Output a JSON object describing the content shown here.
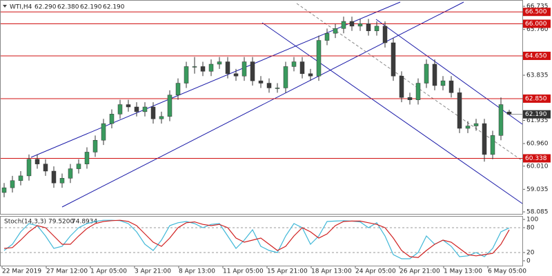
{
  "chart_data": {
    "type": "candlestick",
    "title": "WTI,H4",
    "header_values": [
      "62.290",
      "62.380",
      "62.190",
      "62.190"
    ],
    "open": [
      58.9,
      59.1,
      59.4,
      59.6,
      60.3,
      60.1,
      59.8,
      59.3,
      59.5,
      59.9,
      60.1,
      60.6,
      61.1,
      61.8,
      62.2,
      62.6,
      62.5,
      62.3,
      62.5,
      62.0,
      62.1,
      63.0,
      63.5,
      64.2,
      64.2,
      64.0,
      64.3,
      64.4,
      63.9,
      63.8,
      64.4,
      63.6,
      63.5,
      63.3,
      63.3,
      64.2,
      64.4,
      63.9,
      63.8,
      65.3,
      65.6,
      65.8,
      66.1,
      65.9,
      66.0,
      65.7,
      65.9,
      65.2,
      63.8,
      62.9,
      62.8,
      63.5,
      64.3,
      63.4,
      63.6,
      63.1,
      61.6,
      61.7,
      61.8,
      60.5,
      61.3,
      62.29
    ],
    "high": [
      59.3,
      59.6,
      59.8,
      60.5,
      60.5,
      60.3,
      60.0,
      59.7,
      60.1,
      60.3,
      60.8,
      61.3,
      62.0,
      62.4,
      62.8,
      62.8,
      62.7,
      62.7,
      62.7,
      62.3,
      63.2,
      63.7,
      64.4,
      64.6,
      64.4,
      64.5,
      64.6,
      64.6,
      64.1,
      64.6,
      64.6,
      63.8,
      63.7,
      63.5,
      64.4,
      64.6,
      64.6,
      64.1,
      65.5,
      65.8,
      66.0,
      66.3,
      66.3,
      66.2,
      66.2,
      66.1,
      66.1,
      65.4,
      64.0,
      63.1,
      63.7,
      64.5,
      64.5,
      63.8,
      63.8,
      63.3,
      61.9,
      62.0,
      62.0,
      61.5,
      62.9,
      62.38
    ],
    "low": [
      58.7,
      58.9,
      59.2,
      59.4,
      59.9,
      59.6,
      59.1,
      59.1,
      59.3,
      59.7,
      59.9,
      60.4,
      60.9,
      61.6,
      62.0,
      62.3,
      62.1,
      62.1,
      61.8,
      61.8,
      61.9,
      62.8,
      63.3,
      63.9,
      63.8,
      63.8,
      64.1,
      63.7,
      63.6,
      63.6,
      63.4,
      63.3,
      63.1,
      63.1,
      63.1,
      64.0,
      63.7,
      63.6,
      63.6,
      65.1,
      65.4,
      65.6,
      65.7,
      65.7,
      65.5,
      65.5,
      65.0,
      63.6,
      62.7,
      62.6,
      62.6,
      63.3,
      63.2,
      63.2,
      62.9,
      61.4,
      61.4,
      61.5,
      60.2,
      60.3,
      61.1,
      62.19
    ],
    "close": [
      59.1,
      59.4,
      59.6,
      60.3,
      60.1,
      59.8,
      59.3,
      59.5,
      59.9,
      60.1,
      60.6,
      61.1,
      61.8,
      62.2,
      62.6,
      62.5,
      62.3,
      62.5,
      62.0,
      62.1,
      63.0,
      63.5,
      64.2,
      64.2,
      64.0,
      64.3,
      64.4,
      63.9,
      63.8,
      64.4,
      63.6,
      63.5,
      63.3,
      63.3,
      64.2,
      64.4,
      63.9,
      63.8,
      65.3,
      65.6,
      65.8,
      66.1,
      65.9,
      66.0,
      65.7,
      65.9,
      65.2,
      63.8,
      62.9,
      62.8,
      63.5,
      64.3,
      63.4,
      63.6,
      63.1,
      61.6,
      61.7,
      61.8,
      60.5,
      61.3,
      62.6,
      62.19
    ],
    "bull_color": "#3a9a5e",
    "bear_color": "#3c3c3c",
    "ylim": [
      58.0,
      67.0
    ],
    "yticks": [
      {
        "value": 66.735,
        "label": "66.735"
      },
      {
        "value": 65.76,
        "label": "65.760"
      },
      {
        "value": 63.835,
        "label": "63.835"
      },
      {
        "value": 61.935,
        "label": "61.935"
      },
      {
        "value": 60.96,
        "label": "60.960"
      },
      {
        "value": 60.01,
        "label": "60.010"
      },
      {
        "value": 59.035,
        "label": "59.035"
      },
      {
        "value": 58.085,
        "label": "58.085"
      }
    ],
    "levels": [
      {
        "value": 66.5,
        "label": "66.500"
      },
      {
        "value": 66.0,
        "label": "66.000"
      },
      {
        "value": 64.65,
        "label": "64.650"
      },
      {
        "value": 62.85,
        "label": "62.850"
      },
      {
        "value": 60.338,
        "label": "60.338"
      }
    ],
    "level_color": "#d01010",
    "current_price": {
      "value": 62.19,
      "label": "62.190"
    },
    "xlabels": [
      "22 Mar 2019",
      "27 Mar 12:00",
      "1 Apr 05:00",
      "3 Apr 21:00",
      "8 Apr 13:00",
      "11 Apr 05:00",
      "15 Apr 21:00",
      "18 Apr 13:00",
      "24 Apr 05:00",
      "26 Apr 21:00",
      "1 May 13:00",
      "6 May 05:00"
    ],
    "stochastic": {
      "label": "Stoch(14,3,3)",
      "current_labels": [
        "79.5200",
        "74.8934"
      ],
      "ylim": [
        0,
        100
      ],
      "yticks": [
        100,
        80,
        20,
        0
      ],
      "levels": [
        80,
        20
      ],
      "series": [
        {
          "color": "#40b8d8",
          "values": [
            25,
            40,
            70,
            90,
            85,
            60,
            30,
            35,
            60,
            80,
            90,
            95,
            98,
            98,
            97,
            90,
            70,
            40,
            25,
            50,
            85,
            92,
            95,
            90,
            80,
            88,
            90,
            60,
            30,
            50,
            75,
            35,
            25,
            20,
            60,
            90,
            80,
            40,
            60,
            95,
            96,
            97,
            96,
            94,
            80,
            92,
            60,
            15,
            5,
            5,
            20,
            60,
            40,
            50,
            35,
            10,
            12,
            20,
            10,
            30,
            70,
            79.52
          ]
        },
        {
          "color": "#d02020",
          "values": [
            30,
            32,
            50,
            70,
            85,
            80,
            60,
            40,
            40,
            60,
            78,
            90,
            95,
            97,
            98,
            95,
            85,
            65,
            45,
            35,
            55,
            80,
            92,
            94,
            88,
            85,
            88,
            80,
            55,
            45,
            50,
            55,
            40,
            25,
            35,
            60,
            80,
            70,
            55,
            65,
            85,
            95,
            96,
            96,
            92,
            88,
            80,
            55,
            25,
            10,
            8,
            25,
            40,
            50,
            45,
            30,
            15,
            12,
            15,
            18,
            40,
            74.8934
          ]
        }
      ]
    }
  }
}
